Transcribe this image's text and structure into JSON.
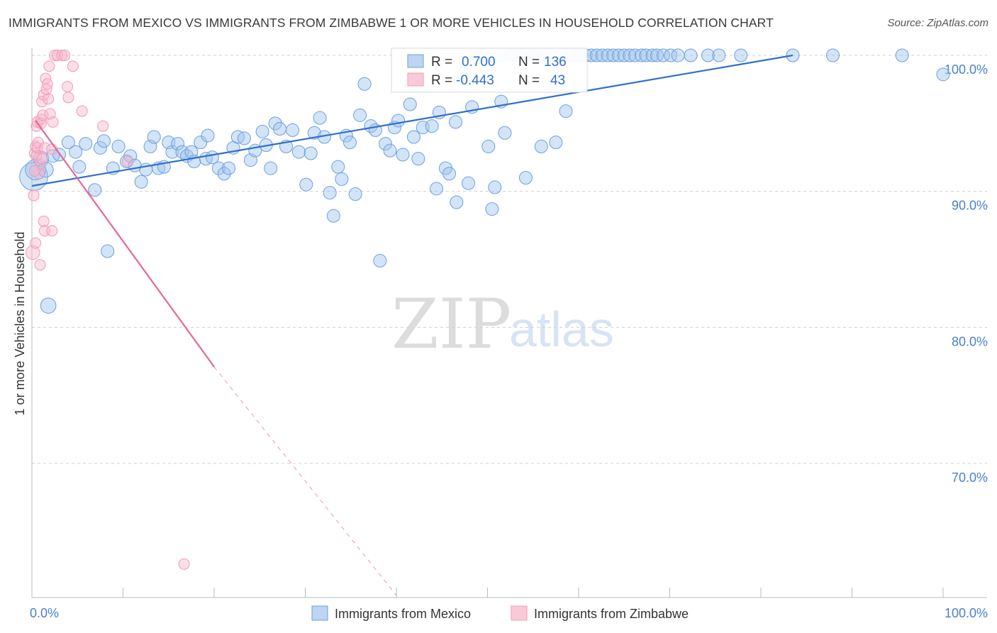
{
  "title": "IMMIGRANTS FROM MEXICO VS IMMIGRANTS FROM ZIMBABWE 1 OR MORE VEHICLES IN HOUSEHOLD CORRELATION CHART",
  "source": "Source: ZipAtlas.com",
  "watermark": {
    "zip": "ZIP",
    "atlas": "atlas"
  },
  "colors": {
    "mexico": "#6a9fe0",
    "mexico_line": "#2f6fce",
    "zimbabwe": "#f29ab6",
    "zimbabwe_line": "#e06a94",
    "tick": "#4a7fd0",
    "grid": "#d0d0d0"
  },
  "stats": {
    "mexico": {
      "r_label": "R =",
      "r_value": "0.700",
      "n_label": "N =",
      "n_value": "136"
    },
    "zimbabwe": {
      "r_label": "R =",
      "r_value": "-0.443",
      "n_label": "N =",
      "n_value": "43"
    }
  },
  "chart_data": {
    "type": "scatter",
    "xlabel": "",
    "ylabel": "1 or more Vehicles in Household",
    "xlim": [
      0,
      100
    ],
    "ylim": [
      60,
      100
    ],
    "x_tick_labels": [
      "0.0%",
      "100.0%"
    ],
    "y_ticks": [
      70,
      80,
      90,
      100
    ],
    "y_tick_labels": [
      "70.0%",
      "80.0%",
      "90.0%",
      "100.0%"
    ],
    "grid": "horizontal dashed",
    "legend_position": "bottom",
    "series": [
      {
        "name": "Immigrants from Mexico",
        "color": "#6a9fe0",
        "trend": {
          "x": [
            0,
            83.5
          ],
          "y": [
            90.4,
            100
          ]
        },
        "points": [
          [
            0.2,
            91.1,
            2.2
          ],
          [
            0.4,
            91.6,
            1.6
          ],
          [
            1.0,
            92.4,
            1.2
          ],
          [
            1.5,
            91.6,
            1.2
          ],
          [
            1.8,
            81.6,
            1.2
          ],
          [
            2.3,
            92.6,
            1.0
          ],
          [
            3.0,
            92.7,
            1.0
          ],
          [
            4.0,
            93.6,
            1.0
          ],
          [
            4.8,
            92.9,
            1.0
          ],
          [
            5.2,
            91.8,
            1.0
          ],
          [
            5.9,
            93.5,
            1.0
          ],
          [
            6.9,
            90.1,
            1.0
          ],
          [
            7.5,
            93.2,
            1.0
          ],
          [
            7.9,
            93.7,
            1.0
          ],
          [
            8.3,
            85.6,
            1.0
          ],
          [
            8.9,
            91.7,
            1.0
          ],
          [
            9.5,
            93.3,
            1.0
          ],
          [
            10.4,
            92.2,
            1.0
          ],
          [
            10.8,
            92.6,
            1.0
          ],
          [
            11.3,
            91.9,
            1.0
          ],
          [
            12.0,
            90.7,
            1.0
          ],
          [
            12.5,
            91.6,
            1.0
          ],
          [
            13.0,
            93.3,
            1.0
          ],
          [
            13.4,
            94.0,
            1.0
          ],
          [
            13.9,
            91.7,
            1.0
          ],
          [
            14.5,
            91.8,
            1.0
          ],
          [
            15.0,
            93.6,
            1.0
          ],
          [
            15.4,
            92.9,
            1.0
          ],
          [
            16.0,
            93.5,
            1.0
          ],
          [
            16.5,
            92.9,
            1.0
          ],
          [
            17.0,
            92.6,
            1.0
          ],
          [
            17.5,
            92.9,
            1.0
          ],
          [
            17.8,
            92.2,
            1.0
          ],
          [
            18.5,
            93.6,
            1.0
          ],
          [
            19.1,
            92.4,
            1.0
          ],
          [
            19.3,
            94.1,
            1.0
          ],
          [
            19.8,
            92.5,
            1.0
          ],
          [
            20.5,
            91.7,
            1.0
          ],
          [
            21.1,
            91.3,
            1.0
          ],
          [
            21.6,
            91.7,
            1.0
          ],
          [
            22.1,
            93.2,
            1.0
          ],
          [
            22.6,
            94.0,
            1.0
          ],
          [
            23.3,
            93.9,
            1.0
          ],
          [
            24.0,
            92.3,
            1.0
          ],
          [
            24.5,
            93.0,
            1.0
          ],
          [
            25.3,
            94.4,
            1.0
          ],
          [
            25.7,
            93.4,
            1.0
          ],
          [
            26.2,
            91.7,
            1.0
          ],
          [
            26.7,
            95.0,
            1.0
          ],
          [
            27.2,
            94.6,
            1.0
          ],
          [
            27.9,
            93.3,
            1.0
          ],
          [
            28.6,
            94.5,
            1.0
          ],
          [
            29.3,
            92.9,
            1.0
          ],
          [
            30.1,
            90.5,
            1.0
          ],
          [
            30.6,
            92.8,
            1.0
          ],
          [
            31.0,
            94.3,
            1.0
          ],
          [
            31.6,
            95.4,
            1.0
          ],
          [
            32.1,
            94.0,
            1.0
          ],
          [
            32.7,
            89.9,
            1.0
          ],
          [
            33.1,
            88.2,
            1.0
          ],
          [
            33.6,
            91.8,
            1.0
          ],
          [
            34.0,
            90.9,
            1.0
          ],
          [
            34.5,
            94.1,
            1.0
          ],
          [
            34.9,
            93.6,
            1.0
          ],
          [
            35.5,
            89.8,
            1.0
          ],
          [
            36.0,
            95.6,
            1.0
          ],
          [
            36.5,
            97.9,
            1.0
          ],
          [
            37.2,
            94.8,
            1.0
          ],
          [
            37.7,
            94.5,
            1.0
          ],
          [
            38.2,
            84.9,
            1.0
          ],
          [
            38.8,
            93.5,
            1.0
          ],
          [
            39.3,
            93.0,
            1.0
          ],
          [
            39.8,
            94.7,
            1.0
          ],
          [
            40.2,
            95.2,
            1.0
          ],
          [
            40.7,
            92.7,
            1.0
          ],
          [
            41.5,
            96.4,
            1.0
          ],
          [
            41.9,
            94.0,
            1.0
          ],
          [
            42.4,
            92.4,
            1.0
          ],
          [
            42.9,
            94.7,
            1.0
          ],
          [
            43.9,
            94.8,
            1.0
          ],
          [
            44.4,
            90.2,
            1.0
          ],
          [
            44.7,
            95.8,
            1.0
          ],
          [
            45.4,
            91.7,
            1.0
          ],
          [
            45.8,
            91.3,
            1.0
          ],
          [
            46.5,
            95.1,
            1.0
          ],
          [
            46.6,
            89.2,
            1.0
          ],
          [
            47.3,
            98.7,
            1.0
          ],
          [
            47.9,
            90.6,
            1.0
          ],
          [
            48.3,
            96.2,
            1.0
          ],
          [
            48.9,
            100,
            1.0
          ],
          [
            49.4,
            100,
            1.0
          ],
          [
            50.1,
            93.3,
            1.0
          ],
          [
            50.5,
            88.7,
            1.0
          ],
          [
            50.8,
            90.3,
            1.0
          ],
          [
            51.4,
            100,
            1.0
          ],
          [
            51.5,
            96.6,
            1.0
          ],
          [
            51.9,
            94.3,
            1.0
          ],
          [
            52.5,
            100,
            1.0
          ],
          [
            53.1,
            100,
            1.0
          ],
          [
            53.7,
            100,
            1.0
          ],
          [
            54.2,
            91.0,
            1.0
          ],
          [
            54.8,
            100,
            1.0
          ],
          [
            55.3,
            100,
            1.0
          ],
          [
            55.9,
            93.3,
            1.0
          ],
          [
            56.4,
            100,
            1.0
          ],
          [
            57.0,
            100,
            1.0
          ],
          [
            57.5,
            93.6,
            1.0
          ],
          [
            58.1,
            100,
            1.0
          ],
          [
            58.6,
            95.9,
            1.0
          ],
          [
            59.1,
            100,
            1.0
          ],
          [
            59.7,
            100,
            1.0
          ],
          [
            60.3,
            100,
            1.0
          ],
          [
            60.8,
            100,
            1.0
          ],
          [
            61.4,
            100,
            1.0
          ],
          [
            62.0,
            100,
            1.0
          ],
          [
            62.6,
            100,
            1.0
          ],
          [
            63.2,
            100,
            1.0
          ],
          [
            63.8,
            100,
            1.0
          ],
          [
            64.4,
            100,
            1.0
          ],
          [
            65.0,
            100,
            1.0
          ],
          [
            65.6,
            100,
            1.0
          ],
          [
            66.2,
            100,
            1.0
          ],
          [
            66.9,
            100,
            1.0
          ],
          [
            67.4,
            100,
            1.0
          ],
          [
            68.1,
            100,
            1.0
          ],
          [
            68.6,
            100,
            1.0
          ],
          [
            69.3,
            100,
            1.0
          ],
          [
            70.1,
            100,
            1.0
          ],
          [
            70.9,
            100,
            1.0
          ],
          [
            72.3,
            100,
            1.0
          ],
          [
            74.2,
            100,
            1.0
          ],
          [
            75.4,
            100,
            1.0
          ],
          [
            77.8,
            100,
            1.0
          ],
          [
            83.5,
            100,
            1.0
          ],
          [
            87.9,
            100,
            1.0
          ],
          [
            95.5,
            100,
            1.0
          ],
          [
            100,
            98.6,
            1.0
          ]
        ]
      },
      {
        "name": "Immigrants from Zimbabwe",
        "color": "#f29ab6",
        "trend": {
          "x": [
            0.4,
            20.0
          ],
          "y": [
            95.2,
            77.1
          ],
          "dashed_to": {
            "x": 40.0,
            "y": 60.3
          }
        },
        "points": [
          [
            0.1,
            85.5,
            1.3
          ],
          [
            0.2,
            89.7,
            1.0
          ],
          [
            0.3,
            92.8,
            1.0
          ],
          [
            0.4,
            93.3,
            1.0
          ],
          [
            0.4,
            86.2,
            1.0
          ],
          [
            0.5,
            94.8,
            1.0
          ],
          [
            0.5,
            92.6,
            1.0
          ],
          [
            0.6,
            95.1,
            1.0
          ],
          [
            0.6,
            93.2,
            1.0
          ],
          [
            0.7,
            93.6,
            1.0
          ],
          [
            0.8,
            91.3,
            1.0
          ],
          [
            0.9,
            84.6,
            1.0
          ],
          [
            0.9,
            92.0,
            1.0
          ],
          [
            1.0,
            95.3,
            1.0
          ],
          [
            1.0,
            95.0,
            1.0
          ],
          [
            1.1,
            96.6,
            1.0
          ],
          [
            1.2,
            95.6,
            1.0
          ],
          [
            1.3,
            97.1,
            1.0
          ],
          [
            1.3,
            87.8,
            1.0
          ],
          [
            1.4,
            93.2,
            1.0
          ],
          [
            1.4,
            87.1,
            1.0
          ],
          [
            1.5,
            98.3,
            1.0
          ],
          [
            1.6,
            97.5,
            1.0
          ],
          [
            1.7,
            97.9,
            1.0
          ],
          [
            1.8,
            96.8,
            1.0
          ],
          [
            1.9,
            99.2,
            1.0
          ],
          [
            2.0,
            95.7,
            1.0
          ],
          [
            2.2,
            93.1,
            1.0
          ],
          [
            2.2,
            87.1,
            1.0
          ],
          [
            2.3,
            95.1,
            1.0
          ],
          [
            2.5,
            100,
            1.0
          ],
          [
            2.8,
            100,
            1.0
          ],
          [
            3.3,
            100,
            1.0
          ],
          [
            3.6,
            100,
            1.0
          ],
          [
            3.9,
            97.7,
            1.0
          ],
          [
            4.0,
            96.9,
            1.0
          ],
          [
            4.5,
            99.2,
            1.0
          ],
          [
            5.5,
            95.9,
            1.0
          ],
          [
            7.8,
            94.8,
            1.0
          ],
          [
            10.5,
            92.2,
            1.0
          ],
          [
            16.7,
            62.6,
            1.0
          ],
          [
            0.3,
            91.5,
            1.0
          ],
          [
            1.1,
            92.4,
            1.0
          ]
        ]
      }
    ]
  }
}
